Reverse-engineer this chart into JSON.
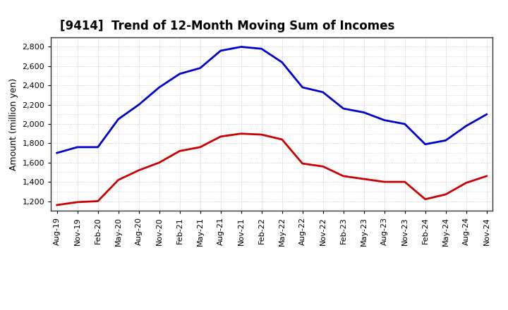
{
  "title": "[9414]  Trend of 12-Month Moving Sum of Incomes",
  "ylabel": "Amount (million yen)",
  "x_labels": [
    "Aug-19",
    "Nov-19",
    "Feb-20",
    "May-20",
    "Aug-20",
    "Nov-20",
    "Feb-21",
    "May-21",
    "Aug-21",
    "Nov-21",
    "Feb-22",
    "May-22",
    "Aug-22",
    "Nov-22",
    "Feb-23",
    "May-23",
    "Aug-23",
    "Nov-23",
    "Feb-24",
    "May-24",
    "Aug-24",
    "Nov-24"
  ],
  "ordinary_income": [
    1700,
    1760,
    1760,
    2050,
    2200,
    2380,
    2520,
    2580,
    2760,
    2800,
    2780,
    2640,
    2380,
    2330,
    2160,
    2120,
    2040,
    2000,
    1790,
    1830,
    1980,
    2100
  ],
  "net_income": [
    1160,
    1190,
    1200,
    1420,
    1520,
    1600,
    1720,
    1760,
    1870,
    1900,
    1890,
    1840,
    1590,
    1560,
    1460,
    1430,
    1400,
    1400,
    1220,
    1270,
    1390,
    1460
  ],
  "ordinary_color": "#0000cc",
  "net_color": "#cc0000",
  "ylim_min": 1100,
  "ylim_max": 2900,
  "yticks": [
    1200,
    1400,
    1600,
    1800,
    2000,
    2200,
    2400,
    2600,
    2800
  ],
  "background_color": "#ffffff",
  "grid_color": "#bbbbbb",
  "title_fontsize": 12,
  "ylabel_fontsize": 9,
  "tick_fontsize": 8,
  "line_width": 2.0,
  "legend_fontsize": 9
}
